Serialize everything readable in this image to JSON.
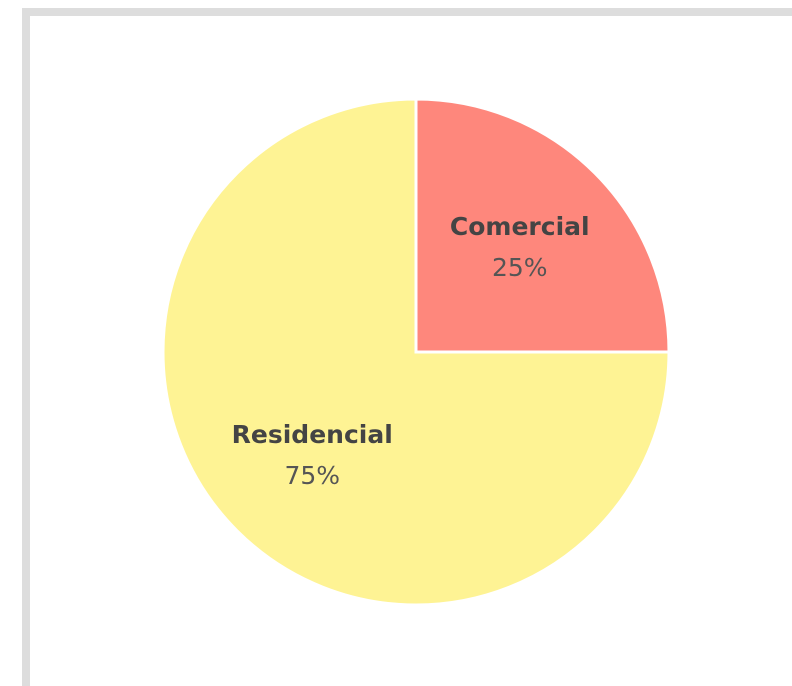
{
  "chart_data": {
    "type": "pie",
    "categories": [
      "Comercial",
      "Residencial"
    ],
    "values": [
      25,
      75
    ],
    "value_labels": [
      "25%",
      "75%"
    ],
    "colors": [
      "#fe877c",
      "#fef394"
    ]
  }
}
